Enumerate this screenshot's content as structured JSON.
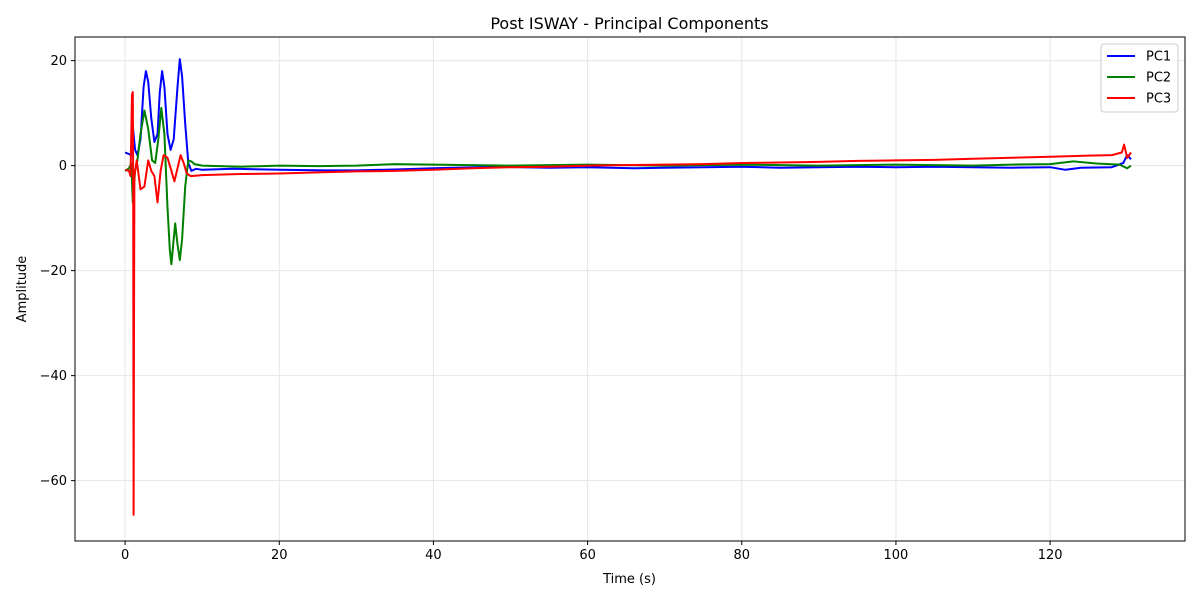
{
  "chart_data": {
    "type": "line",
    "title": "Post ISWAY - Principal Components",
    "xlabel": "Time (s)",
    "ylabel": "Amplitude",
    "xlim": [
      -6.5,
      137.5
    ],
    "ylim": [
      -71.5,
      24.5
    ],
    "xticks": [
      0,
      20,
      40,
      60,
      80,
      100,
      120
    ],
    "yticks": [
      20,
      0,
      -20,
      -40,
      -60
    ],
    "xtick_labels": [
      "0",
      "20",
      "40",
      "60",
      "80",
      "100",
      "120"
    ],
    "ytick_labels": [
      "20",
      "0",
      "−20",
      "−40",
      "−60"
    ],
    "grid": true,
    "legend_position": "top-right",
    "series": [
      {
        "name": "PC1",
        "color": "#0000ff",
        "points": [
          [
            0,
            2.5
          ],
          [
            0.5,
            2.2
          ],
          [
            0.8,
            2.0
          ],
          [
            1.0,
            7.5
          ],
          [
            1.3,
            3.0
          ],
          [
            1.6,
            2.0
          ],
          [
            2.0,
            5.0
          ],
          [
            2.4,
            15.0
          ],
          [
            2.7,
            18.0
          ],
          [
            3.0,
            16.0
          ],
          [
            3.4,
            9.0
          ],
          [
            3.8,
            4.5
          ],
          [
            4.2,
            6.0
          ],
          [
            4.5,
            14.0
          ],
          [
            4.8,
            18.0
          ],
          [
            5.1,
            15.0
          ],
          [
            5.5,
            6.0
          ],
          [
            5.9,
            3.0
          ],
          [
            6.3,
            5.0
          ],
          [
            6.8,
            15.0
          ],
          [
            7.1,
            20.3
          ],
          [
            7.4,
            17.0
          ],
          [
            7.8,
            8.0
          ],
          [
            8.2,
            0.5
          ],
          [
            8.6,
            -1.0
          ],
          [
            9.2,
            -0.6
          ],
          [
            10,
            -0.8
          ],
          [
            14,
            -0.6
          ],
          [
            20,
            -0.8
          ],
          [
            26,
            -0.9
          ],
          [
            30,
            -0.9
          ],
          [
            36,
            -0.7
          ],
          [
            40,
            -0.5
          ],
          [
            48,
            -0.2
          ],
          [
            55,
            -0.4
          ],
          [
            60,
            -0.3
          ],
          [
            66,
            -0.5
          ],
          [
            70,
            -0.4
          ],
          [
            75,
            -0.3
          ],
          [
            80,
            -0.2
          ],
          [
            85,
            -0.4
          ],
          [
            90,
            -0.3
          ],
          [
            95,
            -0.2
          ],
          [
            100,
            -0.3
          ],
          [
            105,
            -0.2
          ],
          [
            110,
            -0.3
          ],
          [
            115,
            -0.4
          ],
          [
            120,
            -0.3
          ],
          [
            122,
            -0.8
          ],
          [
            124,
            -0.4
          ],
          [
            128,
            -0.3
          ],
          [
            129.5,
            0.5
          ],
          [
            130,
            2.0
          ],
          [
            130.5,
            1.2
          ]
        ]
      },
      {
        "name": "PC2",
        "color": "#008000",
        "points": [
          [
            0,
            -1.0
          ],
          [
            0.5,
            -0.5
          ],
          [
            0.8,
            0.5
          ],
          [
            1.0,
            -7.0
          ],
          [
            1.3,
            -1.0
          ],
          [
            1.6,
            1.0
          ],
          [
            2.0,
            6.0
          ],
          [
            2.5,
            10.5
          ],
          [
            3.0,
            7.0
          ],
          [
            3.5,
            1.0
          ],
          [
            3.9,
            0.5
          ],
          [
            4.3,
            5.0
          ],
          [
            4.7,
            11.0
          ],
          [
            5.1,
            6.0
          ],
          [
            5.5,
            -8.0
          ],
          [
            5.8,
            -16.0
          ],
          [
            6.0,
            -18.8
          ],
          [
            6.3,
            -14.0
          ],
          [
            6.5,
            -11.0
          ],
          [
            6.8,
            -15.0
          ],
          [
            7.1,
            -18.0
          ],
          [
            7.4,
            -14.0
          ],
          [
            7.8,
            -4.0
          ],
          [
            8.2,
            1.0
          ],
          [
            8.6,
            0.8
          ],
          [
            9.0,
            0.3
          ],
          [
            10,
            0.0
          ],
          [
            15,
            -0.2
          ],
          [
            20,
            0.0
          ],
          [
            25,
            -0.1
          ],
          [
            30,
            0.0
          ],
          [
            35,
            0.3
          ],
          [
            40,
            0.2
          ],
          [
            45,
            0.1
          ],
          [
            50,
            0.0
          ],
          [
            55,
            0.1
          ],
          [
            60,
            0.2
          ],
          [
            65,
            0.1
          ],
          [
            70,
            0.0
          ],
          [
            75,
            0.1
          ],
          [
            80,
            0.2
          ],
          [
            85,
            0.1
          ],
          [
            90,
            0.0
          ],
          [
            95,
            0.1
          ],
          [
            100,
            0.2
          ],
          [
            105,
            0.1
          ],
          [
            110,
            0.0
          ],
          [
            115,
            0.2
          ],
          [
            120,
            0.3
          ],
          [
            123,
            0.8
          ],
          [
            126,
            0.4
          ],
          [
            129,
            0.2
          ],
          [
            130,
            -0.5
          ],
          [
            130.5,
            0.0
          ]
        ]
      },
      {
        "name": "PC3",
        "color": "#ff0000",
        "points": [
          [
            0,
            -0.8
          ],
          [
            0.5,
            -1.0
          ],
          [
            0.7,
            -2.0
          ],
          [
            0.9,
            13.5
          ],
          [
            1.0,
            14.0
          ],
          [
            1.05,
            -5.0
          ],
          [
            1.1,
            -66.5
          ],
          [
            1.15,
            -30.0
          ],
          [
            1.2,
            -2.0
          ],
          [
            1.5,
            1.0
          ],
          [
            2.0,
            -4.5
          ],
          [
            2.5,
            -4.0
          ],
          [
            3.0,
            1.0
          ],
          [
            3.4,
            -1.0
          ],
          [
            3.8,
            -2.0
          ],
          [
            4.2,
            -7.0
          ],
          [
            4.6,
            -1.0
          ],
          [
            5.0,
            2.0
          ],
          [
            5.5,
            1.5
          ],
          [
            6.0,
            -1.0
          ],
          [
            6.4,
            -3.0
          ],
          [
            6.8,
            -0.5
          ],
          [
            7.2,
            2.0
          ],
          [
            7.6,
            0.5
          ],
          [
            8.0,
            -1.5
          ],
          [
            8.5,
            -2.0
          ],
          [
            10,
            -1.8
          ],
          [
            15,
            -1.6
          ],
          [
            20,
            -1.5
          ],
          [
            25,
            -1.3
          ],
          [
            30,
            -1.1
          ],
          [
            35,
            -1.0
          ],
          [
            40,
            -0.8
          ],
          [
            45,
            -0.5
          ],
          [
            50,
            -0.3
          ],
          [
            55,
            -0.2
          ],
          [
            60,
            0.0
          ],
          [
            65,
            0.1
          ],
          [
            70,
            0.2
          ],
          [
            75,
            0.3
          ],
          [
            80,
            0.5
          ],
          [
            85,
            0.6
          ],
          [
            90,
            0.7
          ],
          [
            95,
            0.9
          ],
          [
            100,
            1.0
          ],
          [
            105,
            1.1
          ],
          [
            110,
            1.3
          ],
          [
            115,
            1.5
          ],
          [
            120,
            1.7
          ],
          [
            125,
            1.9
          ],
          [
            128,
            2.0
          ],
          [
            129.3,
            2.5
          ],
          [
            129.6,
            4.0
          ],
          [
            130,
            1.5
          ],
          [
            130.5,
            2.5
          ]
        ]
      }
    ]
  }
}
